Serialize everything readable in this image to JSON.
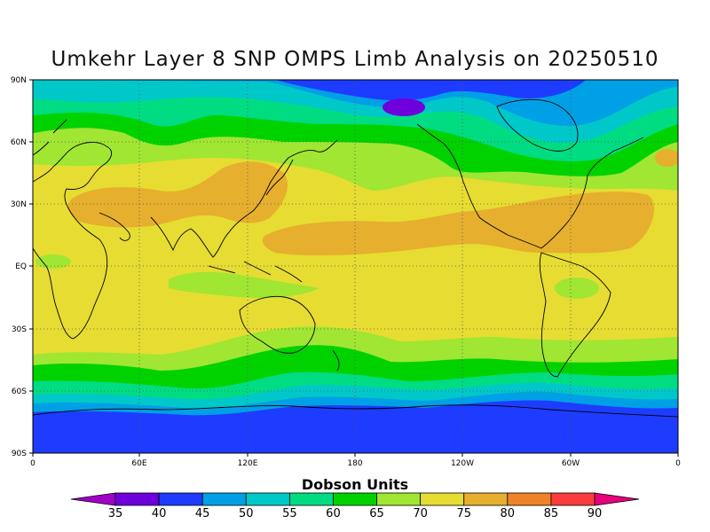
{
  "title": "Umkehr Layer 8 SNP OMPS Limb Analysis on 20250510",
  "chart_data": {
    "type": "heatmap",
    "lat_ticks": [
      "90N",
      "60N",
      "30N",
      "EQ",
      "30S",
      "60S",
      "90S"
    ],
    "lon_ticks": [
      "0",
      "60E",
      "120E",
      "180",
      "120W",
      "60W",
      "0"
    ],
    "legend_title": "Dobson Units",
    "levels": [
      35,
      40,
      45,
      50,
      55,
      60,
      65,
      70,
      75,
      80,
      85,
      90
    ],
    "level_colors": [
      "#a000c8",
      "#6e00dc",
      "#1e3cff",
      "#00a0e6",
      "#00c8c8",
      "#00dc82",
      "#00d200",
      "#a0e632",
      "#e6dc32",
      "#e6af2d",
      "#f08228",
      "#fa3c3c",
      "#e6007d"
    ],
    "grid": "dotted",
    "lat_range": [
      -90,
      90
    ],
    "lon_range": [
      0,
      360
    ]
  }
}
